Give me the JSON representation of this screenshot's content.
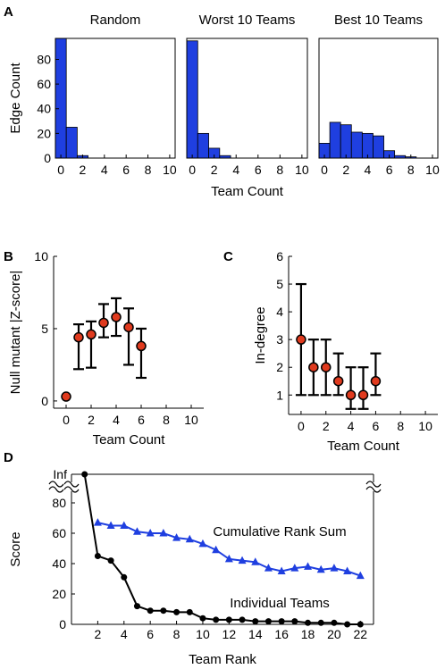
{
  "panels": {
    "A": {
      "label": "A"
    },
    "B": {
      "label": "B"
    },
    "C": {
      "label": "C"
    },
    "D": {
      "label": "D"
    }
  },
  "chart_data": [
    {
      "id": "A-random",
      "type": "bar",
      "title": "Random",
      "ylabel": "Edge Count",
      "xlabel": "",
      "categories": [
        0,
        1,
        2,
        3,
        4,
        5,
        6,
        7,
        8,
        9,
        10
      ],
      "values": [
        97,
        25,
        2,
        0,
        0,
        0,
        0,
        0,
        0,
        0,
        0
      ],
      "xticks": [
        0,
        2,
        4,
        6,
        8,
        10
      ],
      "yticks": [
        0,
        20,
        40,
        60,
        80
      ],
      "xlim": [
        -0.5,
        10.5
      ],
      "ylim": [
        0,
        97
      ],
      "color": "#1f3fe0"
    },
    {
      "id": "A-worst",
      "type": "bar",
      "title": "Worst 10 Teams",
      "xlabel": "Team Count",
      "categories": [
        0,
        1,
        2,
        3,
        4,
        5,
        6,
        7,
        8,
        9,
        10
      ],
      "values": [
        95,
        20,
        8,
        2,
        0,
        0,
        0,
        0,
        0,
        0,
        0
      ],
      "xticks": [
        0,
        2,
        4,
        6,
        8,
        10
      ],
      "xlim": [
        -0.5,
        10.5
      ],
      "ylim": [
        0,
        97
      ],
      "color": "#1f3fe0"
    },
    {
      "id": "A-best",
      "type": "bar",
      "title": "Best 10 Teams",
      "xlabel": "",
      "categories": [
        0,
        1,
        2,
        3,
        4,
        5,
        6,
        7,
        8,
        9,
        10
      ],
      "values": [
        12,
        29,
        27,
        21,
        20,
        18,
        6,
        2,
        1,
        0,
        0
      ],
      "xticks": [
        0,
        2,
        4,
        6,
        8,
        10
      ],
      "xlim": [
        -0.5,
        10.5
      ],
      "ylim": [
        0,
        97
      ],
      "color": "#1f3fe0"
    },
    {
      "id": "B",
      "type": "scatter",
      "ylabel": "Null mutant |Z-score|",
      "xlabel": "Team Count",
      "x": [
        0,
        1,
        2,
        3,
        4,
        5,
        6
      ],
      "y": [
        0.3,
        4.4,
        4.6,
        5.4,
        5.8,
        5.1,
        3.8
      ],
      "y_low": [
        0.3,
        2.2,
        2.3,
        4.4,
        4.5,
        2.5,
        1.6
      ],
      "y_high": [
        0.3,
        5.3,
        5.5,
        6.7,
        7.1,
        6.4,
        5.0
      ],
      "xticks": [
        0,
        2,
        4,
        6,
        8,
        10
      ],
      "yticks": [
        0,
        5,
        10
      ],
      "xlim": [
        -1,
        11
      ],
      "ylim": [
        -0.5,
        10
      ],
      "marker_color": "#e03a1e"
    },
    {
      "id": "C",
      "type": "scatter",
      "ylabel": "In-degree",
      "xlabel": "Team Count",
      "x": [
        0,
        1,
        2,
        3,
        4,
        5,
        6
      ],
      "y": [
        3,
        2,
        2,
        1.5,
        1,
        1,
        1.5
      ],
      "y_low": [
        1,
        1,
        1,
        1,
        0.5,
        0.5,
        1
      ],
      "y_high": [
        5,
        3,
        3,
        2.5,
        2,
        2,
        2.5
      ],
      "xticks": [
        0,
        2,
        4,
        6,
        8,
        10
      ],
      "yticks": [
        1,
        2,
        3,
        4,
        5,
        6
      ],
      "xlim": [
        -1,
        11
      ],
      "ylim": [
        0.3,
        6
      ],
      "marker_color": "#e03a1e"
    },
    {
      "id": "D",
      "type": "line",
      "ylabel": "Score",
      "xlabel": "Team Rank",
      "xticks": [
        2,
        4,
        6,
        8,
        10,
        12,
        14,
        16,
        18,
        20,
        22
      ],
      "yticks": [
        0,
        20,
        40,
        60,
        80
      ],
      "inf_tick": "Inf",
      "xlim": [
        0,
        23
      ],
      "ylim": [
        0,
        80
      ],
      "series": [
        {
          "name": "Cumulative Rank Sum",
          "color": "#1f3fe0",
          "marker": "triangle",
          "x": [
            2,
            3,
            4,
            5,
            6,
            7,
            8,
            9,
            10,
            11,
            12,
            13,
            14,
            15,
            16,
            17,
            18,
            19,
            20,
            21,
            22
          ],
          "y": [
            67,
            65,
            65,
            61,
            60,
            60,
            57,
            56,
            53,
            49,
            43,
            42,
            41,
            37,
            35,
            37,
            38,
            36,
            37,
            35,
            32
          ]
        },
        {
          "name": "Individual Teams",
          "color": "#000000",
          "marker": "circle",
          "inf_x": 1,
          "x": [
            2,
            3,
            4,
            5,
            6,
            7,
            8,
            9,
            10,
            11,
            12,
            13,
            14,
            15,
            16,
            17,
            18,
            19,
            20,
            21,
            22
          ],
          "y": [
            45,
            42,
            31,
            12,
            9,
            9,
            8,
            8,
            4,
            3,
            3,
            3,
            2,
            2,
            2,
            2,
            1,
            1,
            1,
            0,
            0
          ]
        }
      ]
    }
  ]
}
